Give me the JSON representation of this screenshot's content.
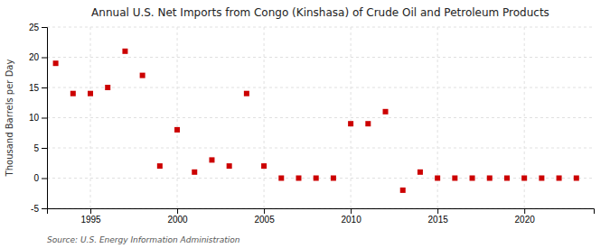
{
  "chart_data": {
    "type": "scatter",
    "title": "Annual U.S. Net Imports from Congo (Kinshasa) of Crude Oil and Petroleum Products",
    "ylabel": "Thousand Barrels per Day",
    "annotations": [
      "Source: U.S. Energy Information Administration"
    ],
    "x": [
      1993,
      1994,
      1995,
      1996,
      1997,
      1998,
      1999,
      2000,
      2001,
      2002,
      2003,
      2004,
      2005,
      2006,
      2007,
      2008,
      2009,
      2010,
      2011,
      2012,
      2013,
      2014,
      2015,
      2016,
      2017,
      2018,
      2019,
      2020,
      2021,
      2022,
      2023
    ],
    "values": [
      19,
      14,
      14,
      15,
      21,
      17,
      2,
      8,
      1,
      3,
      2,
      14,
      2,
      0,
      0,
      0,
      0,
      9,
      9,
      11,
      -2,
      1,
      0,
      0,
      0,
      0,
      0,
      0,
      0,
      0,
      0
    ],
    "color": "#cc0000",
    "marker": "square",
    "xlim": [
      1992.5,
      2024
    ],
    "xticks": [
      1995,
      2000,
      2005,
      2010,
      2015,
      2020
    ],
    "ylim": [
      -5,
      25
    ],
    "yticks": [
      -5,
      0,
      5,
      10,
      15,
      20,
      25
    ],
    "grid": true
  }
}
